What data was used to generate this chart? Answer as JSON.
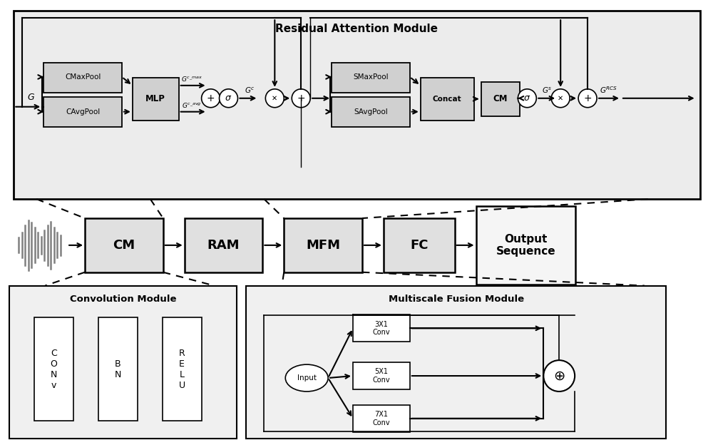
{
  "bg_color": "#ffffff",
  "ram_bg": "#e8e8e8",
  "box_bg": "#d0d0d0",
  "box_light": "#f0f0f0",
  "title": "Residual Attention Module",
  "middle_boxes": [
    "CM",
    "RAM",
    "MFM",
    "FC"
  ],
  "output_text": "Output\nSequence",
  "conv_module_title": "Convolution Module",
  "mfm_title": "Multiscale Fusion Module",
  "conv_blocks": [
    "C\nO\nN\nv",
    "B\nN",
    "R\nE\nL\nU"
  ]
}
